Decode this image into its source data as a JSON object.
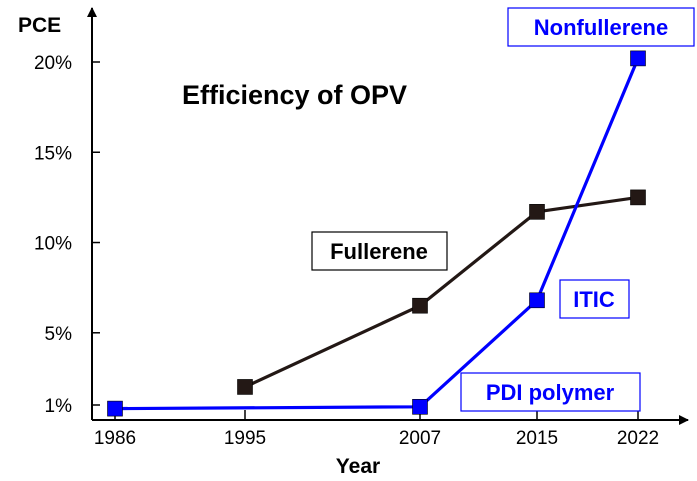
{
  "chart_data": {
    "type": "line",
    "title": "Efficiency of OPV",
    "xlabel": "Year",
    "ylabel": "PCE",
    "x_ticks": [
      "1986",
      "1995",
      "2007",
      "2015",
      "2022"
    ],
    "y_ticks": [
      "1%",
      "5%",
      "10%",
      "15%",
      "20%"
    ],
    "y_unit": "%",
    "grid": false,
    "series": [
      {
        "name": "Fullerene",
        "color": "#231815",
        "points": [
          {
            "x": 1995,
            "y": 2.0
          },
          {
            "x": 2007,
            "y": 6.5
          },
          {
            "x": 2015,
            "y": 11.7
          },
          {
            "x": 2022,
            "y": 12.5
          }
        ]
      },
      {
        "name": "Nonfullerene",
        "color": "#0000ff",
        "points": [
          {
            "x": 1986,
            "y": 0.8
          },
          {
            "x": 2007,
            "y": 0.9
          },
          {
            "x": 2015,
            "y": 6.8
          },
          {
            "x": 2022,
            "y": 20.2
          }
        ]
      }
    ],
    "annotations": [
      "Fullerene",
      "Nonfullerene",
      "ITIC",
      "PDI polymer"
    ]
  }
}
